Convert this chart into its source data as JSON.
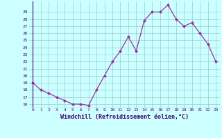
{
  "x": [
    0,
    1,
    2,
    3,
    4,
    5,
    6,
    7,
    8,
    9,
    10,
    11,
    12,
    13,
    14,
    15,
    16,
    17,
    18,
    19,
    20,
    21,
    22,
    23
  ],
  "y": [
    19,
    18,
    17.5,
    17,
    16.5,
    16,
    16,
    15.8,
    18,
    20,
    22,
    23.5,
    25.5,
    23.5,
    27.8,
    29,
    29,
    30,
    28,
    27,
    27.5,
    26,
    24.5,
    22
  ],
  "line_color": "#993399",
  "marker_color": "#993399",
  "bg_color": "#ccffff",
  "grid_color": "#99cccc",
  "xlabel": "Windchill (Refroidissement éolien,°C)",
  "ylim": [
    15.5,
    30.5
  ],
  "xlim": [
    -0.5,
    23.5
  ],
  "yticks": [
    16,
    17,
    18,
    19,
    20,
    21,
    22,
    23,
    24,
    25,
    26,
    27,
    28,
    29
  ],
  "xticks": [
    0,
    1,
    2,
    3,
    4,
    5,
    6,
    7,
    8,
    9,
    10,
    11,
    12,
    13,
    14,
    15,
    16,
    17,
    18,
    19,
    20,
    21,
    22,
    23
  ]
}
